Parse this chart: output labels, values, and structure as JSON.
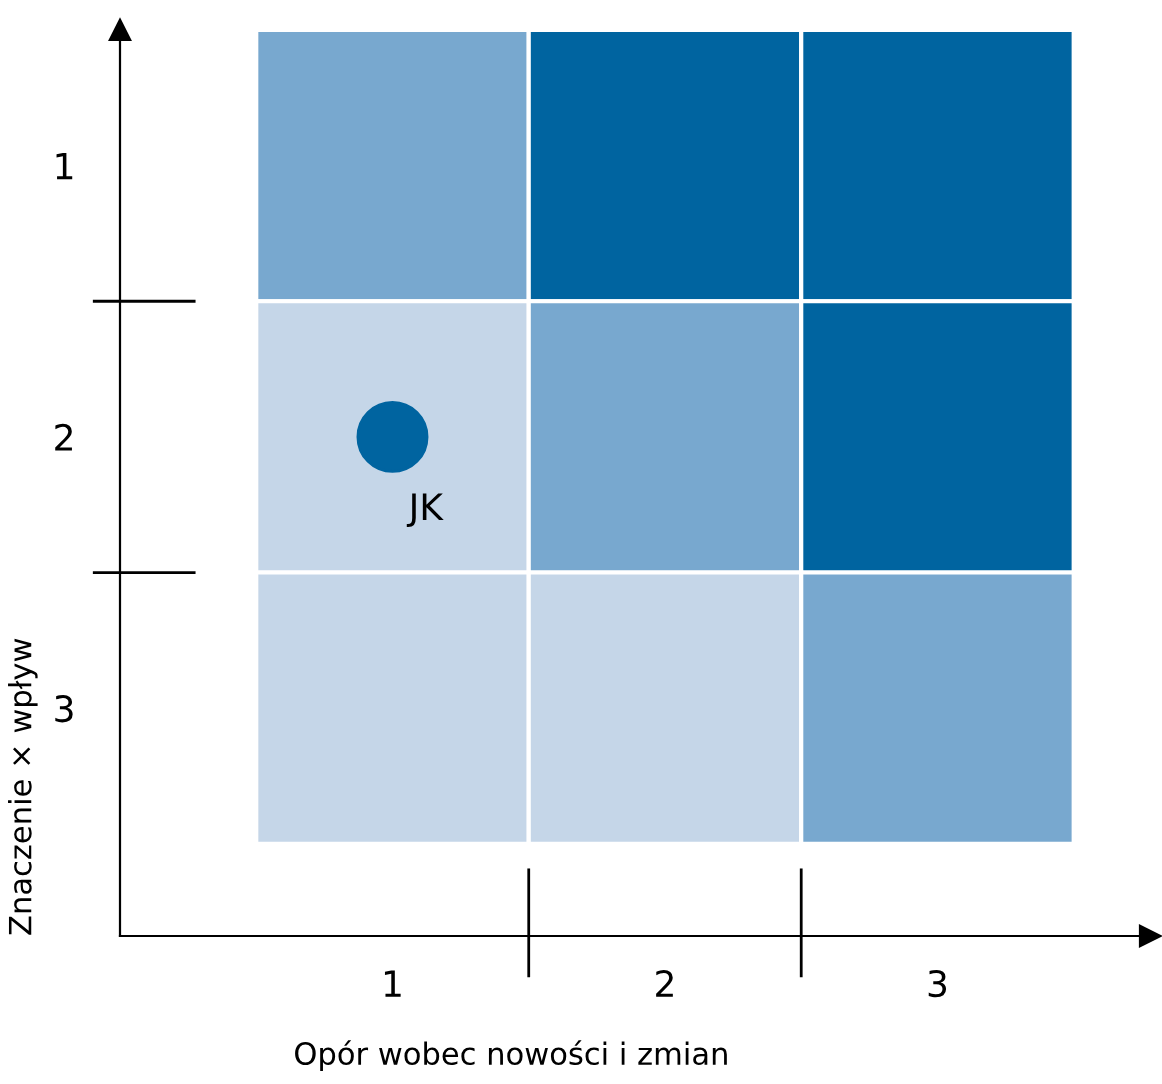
{
  "chart_data": {
    "type": "scatter",
    "xlabel": "Opór wobec nowości i zmian",
    "ylabel": "Znaczenie × wpływ",
    "xlim": [
      0,
      3.78
    ],
    "ylim": [
      3.84,
      0.5
    ],
    "xticks": [
      1,
      2,
      3
    ],
    "yticks": [
      1,
      2,
      3
    ],
    "series": [
      {
        "color": "#0064a0",
        "x": [
          1
        ],
        "values": [
          2
        ]
      }
    ],
    "marker": "circle",
    "grid": false,
    "legend": false,
    "annotations": [
      {
        "text": "JK",
        "x": 1,
        "y": 2
      }
    ]
  }
}
